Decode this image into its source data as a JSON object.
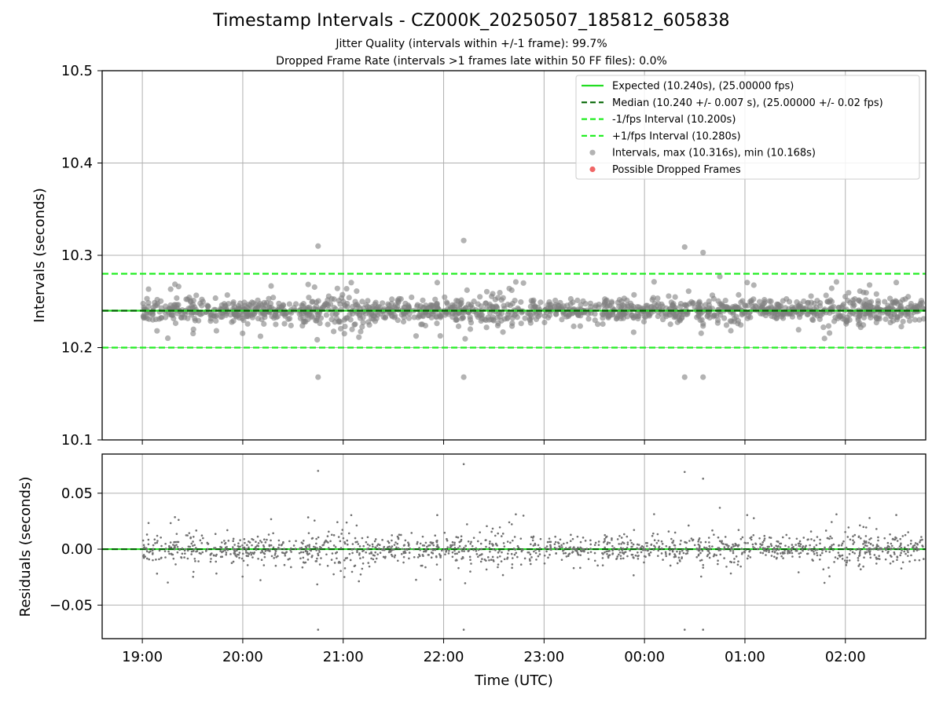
{
  "chart_data": [
    {
      "type": "scatter",
      "title": "Timestamp Intervals - CZ000K_20250507_185812_605838",
      "subtitles": [
        "Jitter Quality (intervals within +/-1 frame): 99.7%",
        "Dropped Frame Rate (intervals >1 frames late within 50 FF files): 0.0%"
      ],
      "ylabel": "Intervals (seconds)",
      "ylim": [
        10.1,
        10.5
      ],
      "yticks": [
        "10.1",
        "10.2",
        "10.3",
        "10.4",
        "10.5"
      ],
      "xlim_hours": [
        18.6,
        26.8
      ],
      "xticks": [
        "19:00",
        "20:00",
        "21:00",
        "22:00",
        "23:00",
        "00:00",
        "01:00",
        "02:00"
      ],
      "grid": true,
      "legend_position": "top-right",
      "reference_lines": [
        {
          "name": "Expected (10.240s), (25.00000 fps)",
          "y": 10.24,
          "color": "#22dd22",
          "style": "solid"
        },
        {
          "name": "Median (10.240 +/- 0.007 s), (25.00000 +/- 0.02 fps)",
          "y": 10.24,
          "color": "#006400",
          "style": "dashed"
        },
        {
          "name": "-1/fps Interval (10.200s)",
          "y": 10.2,
          "color": "#22ee22",
          "style": "dashed"
        },
        {
          "name": "+1/fps Interval (10.280s)",
          "y": 10.28,
          "color": "#22ee22",
          "style": "dashed"
        }
      ],
      "series": [
        {
          "name": "Intervals, max (10.316s), min (10.168s)",
          "color": "#808080",
          "marker": "circle"
        },
        {
          "name": "Possible Dropped Frames",
          "color": "#ee5555",
          "marker": "circle",
          "count": 0
        }
      ],
      "notable_points": [
        {
          "x": "20:45",
          "y": 10.31
        },
        {
          "x": "20:45",
          "y": 10.168
        },
        {
          "x": "22:12",
          "y": 10.316
        },
        {
          "x": "22:12",
          "y": 10.168
        },
        {
          "x": "00:24",
          "y": 10.309
        },
        {
          "x": "00:24",
          "y": 10.168
        },
        {
          "x": "00:35",
          "y": 10.303
        },
        {
          "x": "00:35",
          "y": 10.168
        },
        {
          "x": "00:45",
          "y": 10.277
        }
      ]
    },
    {
      "type": "scatter",
      "ylabel": "Residuals (seconds)",
      "xlabel": "Time (UTC)",
      "ylim": [
        -0.08,
        0.085
      ],
      "yticks": [
        "−0.05",
        "0.00",
        "0.05"
      ],
      "xticks": [
        "19:00",
        "20:00",
        "21:00",
        "22:00",
        "23:00",
        "00:00",
        "01:00",
        "02:00"
      ],
      "grid": true,
      "reference_lines": [
        {
          "y": 0.0,
          "color": "#22dd22",
          "style": "solid"
        },
        {
          "y": 0.0,
          "color": "#006400",
          "style": "dashed"
        }
      ],
      "series": [
        {
          "name": "Residuals",
          "color": "#707070",
          "marker": "dot"
        }
      ],
      "notable_points": [
        {
          "x": "20:45",
          "y": 0.07
        },
        {
          "x": "20:45",
          "y": -0.072
        },
        {
          "x": "22:12",
          "y": 0.077
        },
        {
          "x": "22:12",
          "y": -0.073
        },
        {
          "x": "00:24",
          "y": 0.069
        },
        {
          "x": "00:24",
          "y": -0.072
        },
        {
          "x": "00:35",
          "y": 0.063
        },
        {
          "x": "00:35",
          "y": -0.072
        },
        {
          "x": "00:45",
          "y": 0.037
        },
        {
          "x": "00:45",
          "y": -0.039
        }
      ]
    }
  ]
}
